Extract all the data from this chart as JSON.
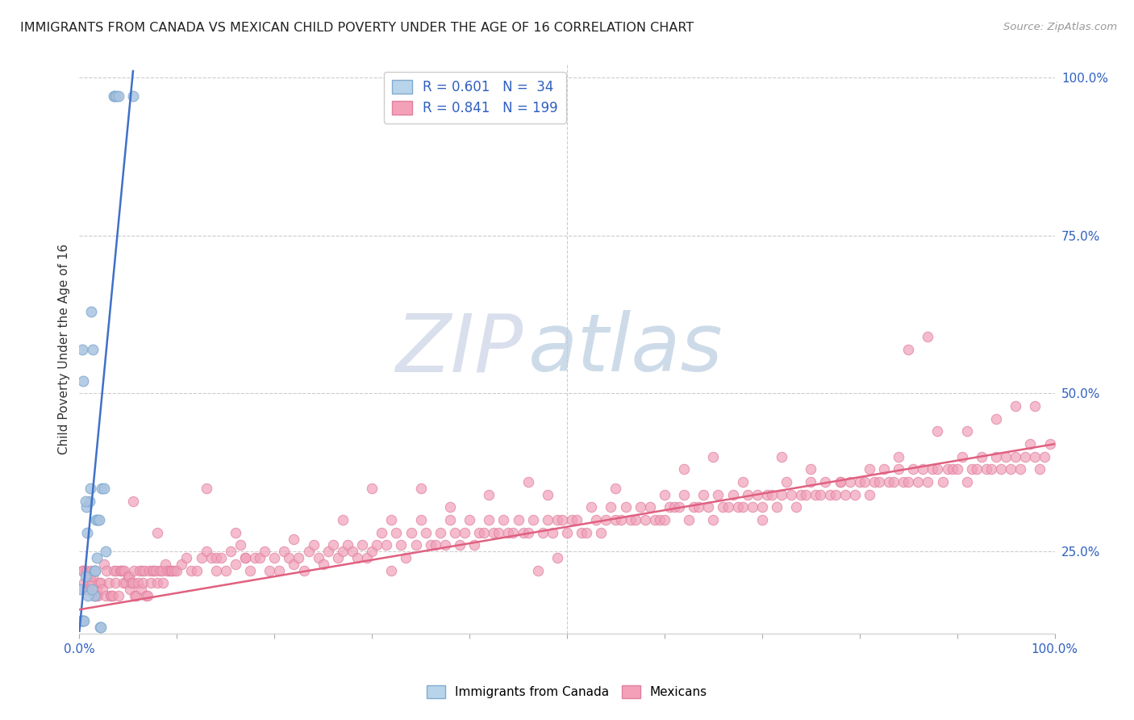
{
  "title": "IMMIGRANTS FROM CANADA VS MEXICAN CHILD POVERTY UNDER THE AGE OF 16 CORRELATION CHART",
  "source": "Source: ZipAtlas.com",
  "ylabel": "Child Poverty Under the Age of 16",
  "xlim": [
    0.0,
    1.0
  ],
  "ylim": [
    0.12,
    1.02
  ],
  "ytick_positions": [
    0.25,
    0.5,
    0.75,
    1.0
  ],
  "ytick_labels": [
    "25.0%",
    "50.0%",
    "75.0%",
    "100.0%"
  ],
  "canada_color": "#aac4e0",
  "canada_edge_color": "#80aad0",
  "mexico_color": "#f0a0b8",
  "mexico_edge_color": "#e080a0",
  "canada_line_color": "#4070c8",
  "mexico_line_color": "#e06080",
  "canada_line": [
    [
      0.0,
      0.124
    ],
    [
      0.055,
      1.01
    ]
  ],
  "mexico_line": [
    [
      0.0,
      0.158
    ],
    [
      1.0,
      0.42
    ]
  ],
  "watermark_zip": "ZIP",
  "watermark_atlas": "atlas",
  "canada_scatter": [
    [
      0.001,
      0.19
    ],
    [
      0.003,
      0.57
    ],
    [
      0.004,
      0.52
    ],
    [
      0.006,
      0.21
    ],
    [
      0.007,
      0.32
    ],
    [
      0.008,
      0.28
    ],
    [
      0.01,
      0.33
    ],
    [
      0.011,
      0.35
    ],
    [
      0.012,
      0.63
    ],
    [
      0.014,
      0.57
    ],
    [
      0.015,
      0.22
    ],
    [
      0.016,
      0.22
    ],
    [
      0.017,
      0.3
    ],
    [
      0.018,
      0.24
    ],
    [
      0.019,
      0.3
    ],
    [
      0.02,
      0.3
    ],
    [
      0.021,
      0.13
    ],
    [
      0.022,
      0.13
    ],
    [
      0.023,
      0.35
    ],
    [
      0.025,
      0.35
    ],
    [
      0.027,
      0.25
    ],
    [
      0.035,
      0.97
    ],
    [
      0.036,
      0.97
    ],
    [
      0.038,
      0.97
    ],
    [
      0.055,
      0.97
    ],
    [
      0.002,
      0.14
    ],
    [
      0.003,
      0.14
    ],
    [
      0.004,
      0.14
    ],
    [
      0.005,
      0.14
    ],
    [
      0.015,
      0.18
    ],
    [
      0.04,
      0.97
    ],
    [
      0.006,
      0.33
    ],
    [
      0.009,
      0.18
    ],
    [
      0.013,
      0.19
    ]
  ],
  "mexico_scatter": [
    [
      0.003,
      0.22
    ],
    [
      0.004,
      0.22
    ],
    [
      0.005,
      0.2
    ],
    [
      0.006,
      0.19
    ],
    [
      0.007,
      0.22
    ],
    [
      0.008,
      0.21
    ],
    [
      0.009,
      0.19
    ],
    [
      0.01,
      0.2
    ],
    [
      0.011,
      0.21
    ],
    [
      0.012,
      0.22
    ],
    [
      0.013,
      0.2
    ],
    [
      0.014,
      0.21
    ],
    [
      0.015,
      0.18
    ],
    [
      0.016,
      0.22
    ],
    [
      0.017,
      0.18
    ],
    [
      0.018,
      0.19
    ],
    [
      0.019,
      0.18
    ],
    [
      0.02,
      0.2
    ],
    [
      0.022,
      0.2
    ],
    [
      0.024,
      0.19
    ],
    [
      0.025,
      0.23
    ],
    [
      0.027,
      0.18
    ],
    [
      0.028,
      0.22
    ],
    [
      0.03,
      0.2
    ],
    [
      0.032,
      0.18
    ],
    [
      0.033,
      0.18
    ],
    [
      0.034,
      0.18
    ],
    [
      0.035,
      0.22
    ],
    [
      0.037,
      0.2
    ],
    [
      0.038,
      0.22
    ],
    [
      0.04,
      0.18
    ],
    [
      0.042,
      0.22
    ],
    [
      0.043,
      0.22
    ],
    [
      0.044,
      0.22
    ],
    [
      0.045,
      0.2
    ],
    [
      0.046,
      0.22
    ],
    [
      0.048,
      0.2
    ],
    [
      0.05,
      0.21
    ],
    [
      0.051,
      0.21
    ],
    [
      0.052,
      0.19
    ],
    [
      0.053,
      0.2
    ],
    [
      0.055,
      0.2
    ],
    [
      0.056,
      0.22
    ],
    [
      0.057,
      0.18
    ],
    [
      0.058,
      0.18
    ],
    [
      0.06,
      0.2
    ],
    [
      0.062,
      0.22
    ],
    [
      0.063,
      0.19
    ],
    [
      0.064,
      0.22
    ],
    [
      0.065,
      0.2
    ],
    [
      0.067,
      0.22
    ],
    [
      0.068,
      0.18
    ],
    [
      0.07,
      0.18
    ],
    [
      0.072,
      0.22
    ],
    [
      0.073,
      0.2
    ],
    [
      0.075,
      0.22
    ],
    [
      0.076,
      0.22
    ],
    [
      0.078,
      0.22
    ],
    [
      0.08,
      0.2
    ],
    [
      0.082,
      0.22
    ],
    [
      0.085,
      0.22
    ],
    [
      0.086,
      0.2
    ],
    [
      0.088,
      0.23
    ],
    [
      0.09,
      0.22
    ],
    [
      0.092,
      0.22
    ],
    [
      0.094,
      0.22
    ],
    [
      0.095,
      0.22
    ],
    [
      0.097,
      0.22
    ],
    [
      0.1,
      0.22
    ],
    [
      0.105,
      0.23
    ],
    [
      0.11,
      0.24
    ],
    [
      0.115,
      0.22
    ],
    [
      0.12,
      0.22
    ],
    [
      0.125,
      0.24
    ],
    [
      0.13,
      0.25
    ],
    [
      0.135,
      0.24
    ],
    [
      0.14,
      0.24
    ],
    [
      0.145,
      0.24
    ],
    [
      0.15,
      0.22
    ],
    [
      0.155,
      0.25
    ],
    [
      0.16,
      0.23
    ],
    [
      0.165,
      0.26
    ],
    [
      0.17,
      0.24
    ],
    [
      0.175,
      0.22
    ],
    [
      0.18,
      0.24
    ],
    [
      0.185,
      0.24
    ],
    [
      0.19,
      0.25
    ],
    [
      0.195,
      0.22
    ],
    [
      0.2,
      0.24
    ],
    [
      0.205,
      0.22
    ],
    [
      0.21,
      0.25
    ],
    [
      0.215,
      0.24
    ],
    [
      0.22,
      0.23
    ],
    [
      0.225,
      0.24
    ],
    [
      0.23,
      0.22
    ],
    [
      0.235,
      0.25
    ],
    [
      0.24,
      0.26
    ],
    [
      0.245,
      0.24
    ],
    [
      0.25,
      0.23
    ],
    [
      0.255,
      0.25
    ],
    [
      0.26,
      0.26
    ],
    [
      0.265,
      0.24
    ],
    [
      0.27,
      0.25
    ],
    [
      0.275,
      0.26
    ],
    [
      0.28,
      0.25
    ],
    [
      0.285,
      0.24
    ],
    [
      0.29,
      0.26
    ],
    [
      0.295,
      0.24
    ],
    [
      0.3,
      0.25
    ],
    [
      0.305,
      0.26
    ],
    [
      0.31,
      0.28
    ],
    [
      0.315,
      0.26
    ],
    [
      0.32,
      0.22
    ],
    [
      0.325,
      0.28
    ],
    [
      0.33,
      0.26
    ],
    [
      0.335,
      0.24
    ],
    [
      0.34,
      0.28
    ],
    [
      0.345,
      0.26
    ],
    [
      0.35,
      0.3
    ],
    [
      0.355,
      0.28
    ],
    [
      0.36,
      0.26
    ],
    [
      0.365,
      0.26
    ],
    [
      0.37,
      0.28
    ],
    [
      0.375,
      0.26
    ],
    [
      0.38,
      0.3
    ],
    [
      0.385,
      0.28
    ],
    [
      0.39,
      0.26
    ],
    [
      0.395,
      0.28
    ],
    [
      0.4,
      0.3
    ],
    [
      0.405,
      0.26
    ],
    [
      0.41,
      0.28
    ],
    [
      0.415,
      0.28
    ],
    [
      0.42,
      0.3
    ],
    [
      0.425,
      0.28
    ],
    [
      0.43,
      0.28
    ],
    [
      0.435,
      0.3
    ],
    [
      0.44,
      0.28
    ],
    [
      0.445,
      0.28
    ],
    [
      0.45,
      0.3
    ],
    [
      0.455,
      0.28
    ],
    [
      0.46,
      0.28
    ],
    [
      0.465,
      0.3
    ],
    [
      0.47,
      0.22
    ],
    [
      0.475,
      0.28
    ],
    [
      0.48,
      0.3
    ],
    [
      0.485,
      0.28
    ],
    [
      0.49,
      0.3
    ],
    [
      0.495,
      0.3
    ],
    [
      0.5,
      0.28
    ],
    [
      0.505,
      0.3
    ],
    [
      0.51,
      0.3
    ],
    [
      0.515,
      0.28
    ],
    [
      0.52,
      0.28
    ],
    [
      0.525,
      0.32
    ],
    [
      0.53,
      0.3
    ],
    [
      0.535,
      0.28
    ],
    [
      0.54,
      0.3
    ],
    [
      0.545,
      0.32
    ],
    [
      0.55,
      0.3
    ],
    [
      0.555,
      0.3
    ],
    [
      0.56,
      0.32
    ],
    [
      0.565,
      0.3
    ],
    [
      0.57,
      0.3
    ],
    [
      0.575,
      0.32
    ],
    [
      0.58,
      0.3
    ],
    [
      0.585,
      0.32
    ],
    [
      0.59,
      0.3
    ],
    [
      0.595,
      0.3
    ],
    [
      0.6,
      0.3
    ],
    [
      0.605,
      0.32
    ],
    [
      0.61,
      0.32
    ],
    [
      0.615,
      0.32
    ],
    [
      0.62,
      0.34
    ],
    [
      0.625,
      0.3
    ],
    [
      0.63,
      0.32
    ],
    [
      0.635,
      0.32
    ],
    [
      0.64,
      0.34
    ],
    [
      0.645,
      0.32
    ],
    [
      0.65,
      0.3
    ],
    [
      0.655,
      0.34
    ],
    [
      0.66,
      0.32
    ],
    [
      0.665,
      0.32
    ],
    [
      0.67,
      0.34
    ],
    [
      0.675,
      0.32
    ],
    [
      0.68,
      0.32
    ],
    [
      0.685,
      0.34
    ],
    [
      0.69,
      0.32
    ],
    [
      0.695,
      0.34
    ],
    [
      0.7,
      0.3
    ],
    [
      0.705,
      0.34
    ],
    [
      0.71,
      0.34
    ],
    [
      0.715,
      0.32
    ],
    [
      0.72,
      0.34
    ],
    [
      0.725,
      0.36
    ],
    [
      0.73,
      0.34
    ],
    [
      0.735,
      0.32
    ],
    [
      0.74,
      0.34
    ],
    [
      0.745,
      0.34
    ],
    [
      0.75,
      0.36
    ],
    [
      0.755,
      0.34
    ],
    [
      0.76,
      0.34
    ],
    [
      0.765,
      0.36
    ],
    [
      0.77,
      0.34
    ],
    [
      0.775,
      0.34
    ],
    [
      0.78,
      0.36
    ],
    [
      0.785,
      0.34
    ],
    [
      0.79,
      0.36
    ],
    [
      0.795,
      0.34
    ],
    [
      0.8,
      0.36
    ],
    [
      0.805,
      0.36
    ],
    [
      0.81,
      0.34
    ],
    [
      0.815,
      0.36
    ],
    [
      0.82,
      0.36
    ],
    [
      0.825,
      0.38
    ],
    [
      0.83,
      0.36
    ],
    [
      0.835,
      0.36
    ],
    [
      0.84,
      0.38
    ],
    [
      0.845,
      0.36
    ],
    [
      0.85,
      0.36
    ],
    [
      0.855,
      0.38
    ],
    [
      0.86,
      0.36
    ],
    [
      0.865,
      0.38
    ],
    [
      0.87,
      0.36
    ],
    [
      0.875,
      0.38
    ],
    [
      0.88,
      0.38
    ],
    [
      0.885,
      0.36
    ],
    [
      0.89,
      0.38
    ],
    [
      0.895,
      0.38
    ],
    [
      0.9,
      0.38
    ],
    [
      0.905,
      0.4
    ],
    [
      0.91,
      0.36
    ],
    [
      0.915,
      0.38
    ],
    [
      0.92,
      0.38
    ],
    [
      0.925,
      0.4
    ],
    [
      0.93,
      0.38
    ],
    [
      0.935,
      0.38
    ],
    [
      0.94,
      0.4
    ],
    [
      0.945,
      0.38
    ],
    [
      0.95,
      0.4
    ],
    [
      0.955,
      0.38
    ],
    [
      0.96,
      0.4
    ],
    [
      0.965,
      0.38
    ],
    [
      0.97,
      0.4
    ],
    [
      0.975,
      0.42
    ],
    [
      0.98,
      0.4
    ],
    [
      0.985,
      0.38
    ],
    [
      0.99,
      0.4
    ],
    [
      0.995,
      0.42
    ],
    [
      0.85,
      0.57
    ],
    [
      0.87,
      0.59
    ],
    [
      0.3,
      0.35
    ],
    [
      0.32,
      0.3
    ],
    [
      0.35,
      0.35
    ],
    [
      0.38,
      0.32
    ],
    [
      0.42,
      0.34
    ],
    [
      0.46,
      0.36
    ],
    [
      0.48,
      0.34
    ],
    [
      0.49,
      0.24
    ],
    [
      0.55,
      0.35
    ],
    [
      0.6,
      0.34
    ],
    [
      0.62,
      0.38
    ],
    [
      0.65,
      0.4
    ],
    [
      0.68,
      0.36
    ],
    [
      0.7,
      0.32
    ],
    [
      0.72,
      0.4
    ],
    [
      0.75,
      0.38
    ],
    [
      0.78,
      0.36
    ],
    [
      0.81,
      0.38
    ],
    [
      0.84,
      0.4
    ],
    [
      0.88,
      0.44
    ],
    [
      0.91,
      0.44
    ],
    [
      0.94,
      0.46
    ],
    [
      0.96,
      0.48
    ],
    [
      0.98,
      0.48
    ],
    [
      0.055,
      0.33
    ],
    [
      0.08,
      0.28
    ],
    [
      0.13,
      0.35
    ],
    [
      0.16,
      0.28
    ],
    [
      0.22,
      0.27
    ],
    [
      0.27,
      0.3
    ],
    [
      0.14,
      0.22
    ],
    [
      0.17,
      0.24
    ]
  ]
}
